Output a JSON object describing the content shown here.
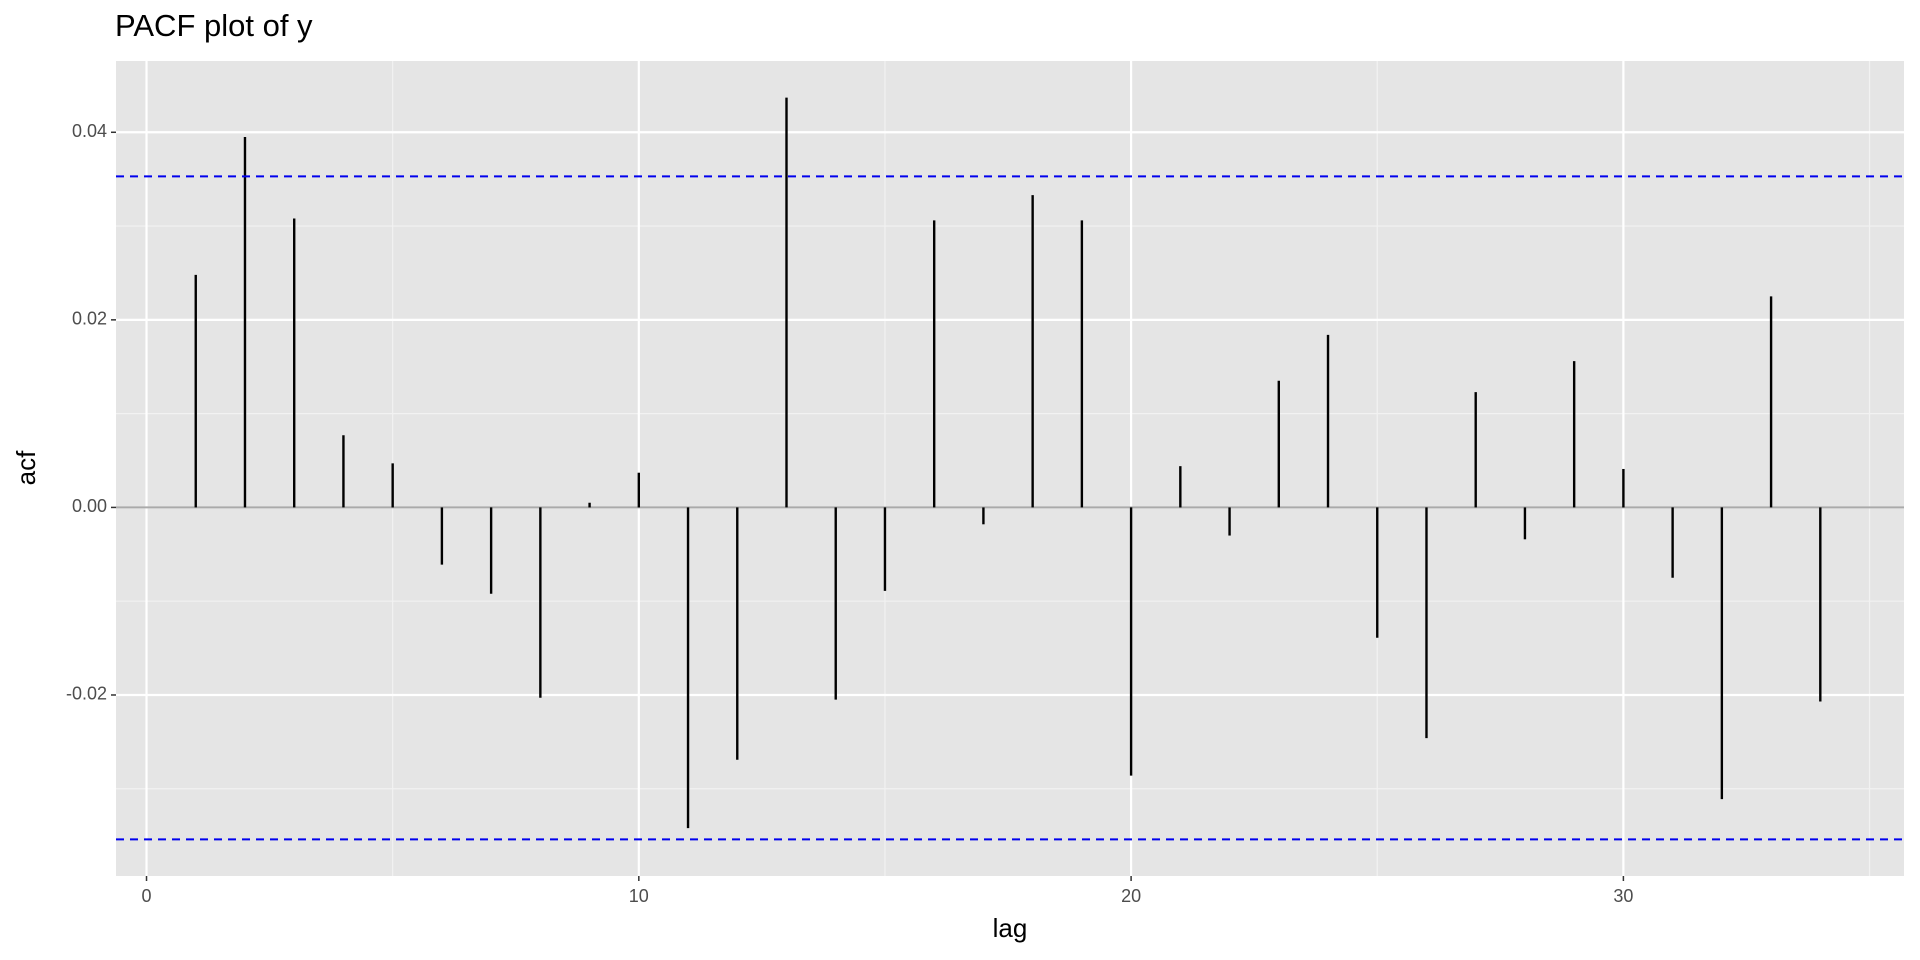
{
  "chart_data": {
    "type": "bar",
    "title": "PACF plot of y",
    "x_label": "lag",
    "y_label": "acf",
    "x": [
      1,
      2,
      3,
      4,
      5,
      6,
      7,
      8,
      9,
      10,
      11,
      12,
      13,
      14,
      15,
      16,
      17,
      18,
      19,
      20,
      21,
      22,
      23,
      24,
      25,
      26,
      27,
      28,
      29,
      30,
      31,
      32,
      33,
      34
    ],
    "values": [
      0.0248,
      0.0395,
      0.0308,
      0.0077,
      0.0047,
      -0.0061,
      -0.0092,
      -0.0203,
      0.0005,
      0.0037,
      -0.0342,
      -0.0269,
      0.0437,
      -0.0205,
      -0.0089,
      0.0306,
      -0.0018,
      0.0333,
      0.0306,
      -0.0286,
      0.0044,
      -0.003,
      0.0135,
      0.0184,
      -0.0139,
      -0.0246,
      0.0123,
      -0.0034,
      0.0156,
      0.0041,
      -0.0075,
      -0.0311,
      0.0225,
      -0.0207
    ],
    "color": "#000000",
    "threshold_lines": [
      0.0353,
      -0.0354
    ],
    "threshold_color": "#0000ee",
    "xlim": [
      -0.62,
      35.7
    ],
    "ylim": [
      -0.0393,
      0.0476
    ],
    "xticks": [
      0,
      10,
      20,
      30
    ],
    "yticks": [
      {
        "value": -0.02,
        "label": "-0.02"
      },
      {
        "value": 0,
        "label": "0.00"
      },
      {
        "value": 0.02,
        "label": "0.02"
      },
      {
        "value": 0.04,
        "label": "0.04"
      }
    ],
    "minor_xticks": [
      5,
      15,
      25,
      35
    ],
    "minor_yticks": [
      -0.03,
      -0.01,
      0.01,
      0.03
    ],
    "grid": true
  }
}
